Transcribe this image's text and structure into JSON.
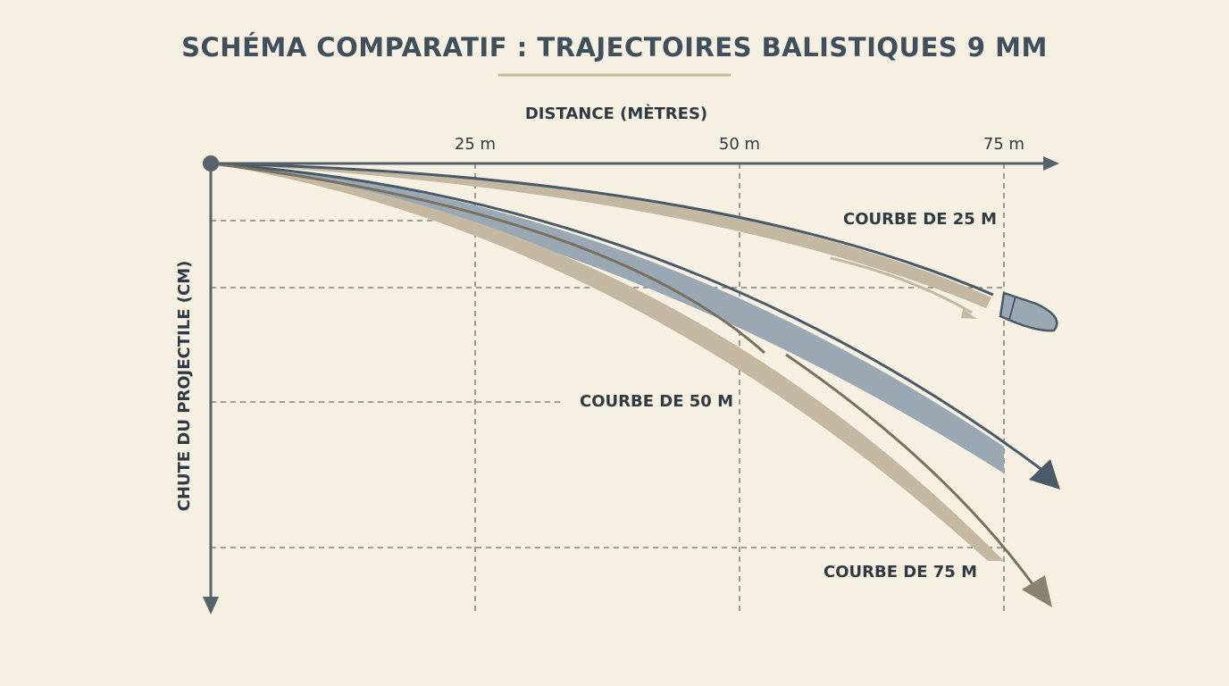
{
  "title": "SCHÉMA COMPARATIF : TRAJECTOIRES BALISTIQUES 9 MM",
  "x_axis": {
    "label": "DISTANCE (MÈTRES)",
    "ticks": [
      "25 m",
      "50 m",
      "75 m"
    ]
  },
  "y_axis": {
    "label": "CHUTE DU PROJECTILE (CM)"
  },
  "curves": [
    {
      "label": "COURBE DE 25 M"
    },
    {
      "label": "COURBE DE 50 M"
    },
    {
      "label": "COURBE DE 75 M"
    }
  ]
}
